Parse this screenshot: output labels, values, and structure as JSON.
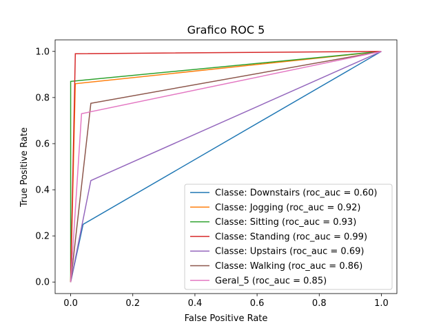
{
  "chart_data": {
    "type": "line",
    "title": "Grafico ROC 5",
    "xlabel": "False Positive Rate",
    "ylabel": "True Positive Rate",
    "xlim": [
      -0.05,
      1.05
    ],
    "ylim": [
      -0.05,
      1.05
    ],
    "xticks": [
      0.0,
      0.2,
      0.4,
      0.6,
      0.8,
      1.0
    ],
    "yticks": [
      0.0,
      0.2,
      0.4,
      0.6,
      0.8,
      1.0
    ],
    "xtick_labels": [
      "0.0",
      "0.2",
      "0.4",
      "0.6",
      "0.8",
      "1.0"
    ],
    "ytick_labels": [
      "0.0",
      "0.2",
      "0.4",
      "0.6",
      "0.8",
      "1.0"
    ],
    "grid": false,
    "legend_position": "lower-right",
    "series": [
      {
        "name": "Classe: Downstairs (roc_auc = 0.60)",
        "color": "#1f77b4",
        "x": [
          0.0,
          0.04,
          1.0
        ],
        "y": [
          0.0,
          0.25,
          1.0
        ]
      },
      {
        "name": "Classe: Jogging (roc_auc = 0.92)",
        "color": "#ff7f0e",
        "x": [
          0.0,
          0.015,
          1.0
        ],
        "y": [
          0.0,
          0.86,
          1.0
        ]
      },
      {
        "name": "Classe: Sitting (roc_auc = 0.93)",
        "color": "#2ca02c",
        "x": [
          0.0,
          0.0,
          1.0
        ],
        "y": [
          0.0,
          0.87,
          1.0
        ]
      },
      {
        "name": "Classe: Standing (roc_auc = 0.99)",
        "color": "#d62728",
        "x": [
          0.0,
          0.015,
          1.0
        ],
        "y": [
          0.0,
          0.99,
          1.0
        ]
      },
      {
        "name": "Classe: Upstairs (roc_auc = 0.69)",
        "color": "#9467bd",
        "x": [
          0.0,
          0.065,
          1.0
        ],
        "y": [
          0.0,
          0.44,
          1.0
        ]
      },
      {
        "name": "Classe: Walking (roc_auc = 0.86)",
        "color": "#8c564b",
        "x": [
          0.0,
          0.065,
          1.0
        ],
        "y": [
          0.0,
          0.775,
          1.0
        ]
      },
      {
        "name": "Geral_5 (roc_auc = 0.85)",
        "color": "#e377c2",
        "x": [
          0.0,
          0.035,
          1.0
        ],
        "y": [
          0.0,
          0.73,
          1.0
        ]
      }
    ]
  }
}
